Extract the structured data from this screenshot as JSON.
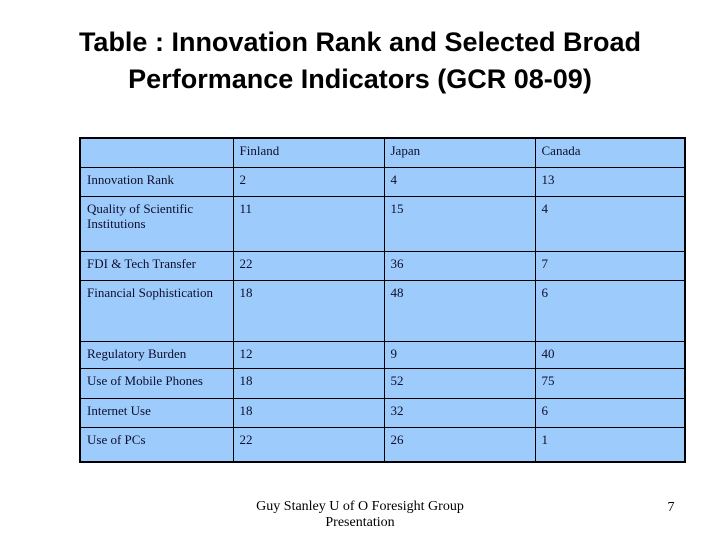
{
  "slide": {
    "title_line1": "Table : Innovation Rank and Selected Broad",
    "title_line2": "Performance Indicators (GCR 08-09)"
  },
  "table": {
    "column_headers": [
      "",
      "Finland",
      "Japan",
      "Canada"
    ],
    "rows": [
      {
        "label": "Innovation Rank",
        "values": [
          "2",
          "4",
          "13"
        ]
      },
      {
        "label": "Quality of Scientific Institutions",
        "values": [
          "11",
          "15",
          "4"
        ]
      },
      {
        "label": "FDI & Tech Transfer",
        "values": [
          "22",
          "36",
          "7"
        ]
      },
      {
        "label": "Financial Sophistication",
        "values": [
          "18",
          "48",
          "6"
        ]
      },
      {
        "label": "Regulatory Burden",
        "values": [
          "12",
          "9",
          "40"
        ]
      },
      {
        "label": "Use of Mobile Phones",
        "values": [
          "18",
          "52",
          "75"
        ]
      },
      {
        "label": "Internet Use",
        "values": [
          "18",
          "32",
          "6"
        ]
      },
      {
        "label": "Use of PCs",
        "values": [
          "22",
          "26",
          "1"
        ]
      }
    ]
  },
  "footer": {
    "credit_line1": "Guy Stanley  U of O Foresight Group",
    "credit_line2": "Presentation",
    "page_number": "7"
  },
  "colors": {
    "cell_background": "#9CCBFC",
    "border": "#000000",
    "title_text": "#000000",
    "table_text": "#0E0E2C"
  }
}
